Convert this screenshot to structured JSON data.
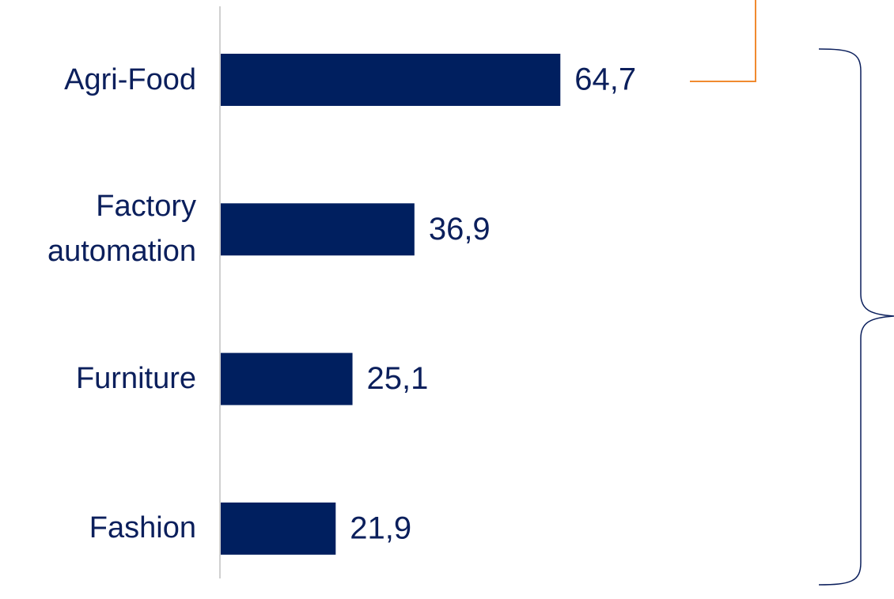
{
  "chart_data": {
    "type": "bar",
    "orientation": "horizontal",
    "categories": [
      "Agri-Food",
      "Factory automation",
      "Furniture",
      "Fashion"
    ],
    "values": [
      64.7,
      36.9,
      25.1,
      21.9
    ],
    "value_labels": [
      "64,7",
      "36,9",
      "25,1",
      "21,9"
    ],
    "color": "#001f5f"
  }
}
